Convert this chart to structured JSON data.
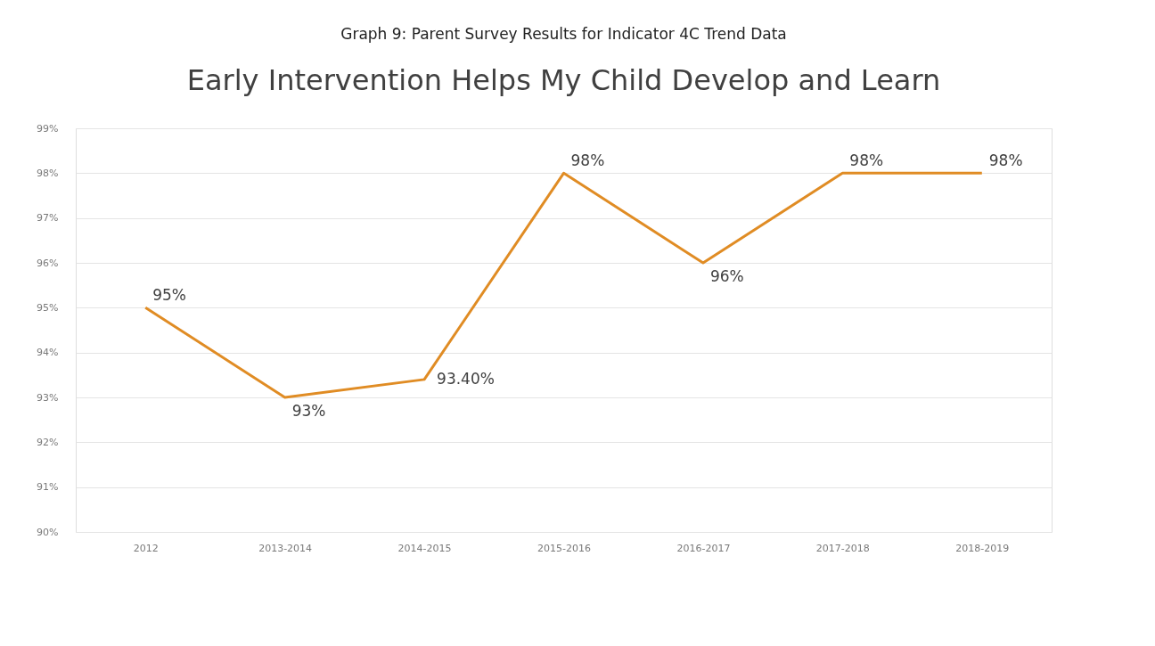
{
  "chart_data": {
    "type": "line",
    "title": "Graph 9: Parent Survey Results for Indicator 4C Trend Data",
    "subtitle": "Early Intervention Helps My Child Develop and Learn",
    "categories": [
      "2012",
      "2013-2014",
      "2014-2015",
      "2015-2016",
      "2016-2017",
      "2017-2018",
      "2018-2019"
    ],
    "series": [
      {
        "color": "#e08c24",
        "values": [
          95,
          93,
          93.4,
          98,
          96,
          98,
          98
        ],
        "value_labels": [
          "95%",
          "93%",
          "93.40%",
          "98%",
          "96%",
          "98%",
          "98%"
        ]
      }
    ],
    "ylim": [
      90,
      99
    ],
    "yticks": [
      {
        "value": 90,
        "label": "90%"
      },
      {
        "value": 91,
        "label": "91%"
      },
      {
        "value": 92,
        "label": "92%"
      },
      {
        "value": 93,
        "label": "93%"
      },
      {
        "value": 94,
        "label": "94%"
      },
      {
        "value": 95,
        "label": "95%"
      },
      {
        "value": 96,
        "label": "96%"
      },
      {
        "value": 97,
        "label": "97%"
      },
      {
        "value": 98,
        "label": "98%"
      },
      {
        "value": 99,
        "label": "99%"
      }
    ],
    "grid": "y",
    "marker": "none",
    "line_style": "solid",
    "legend": false
  }
}
